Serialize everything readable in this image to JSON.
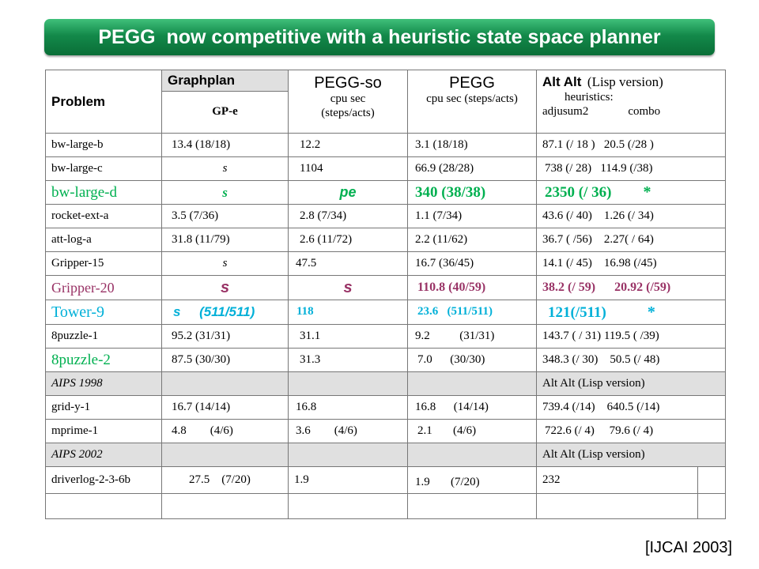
{
  "title": "PEGG  now competitive with a heuristic state space planner",
  "citation": "[IJCAI 2003]",
  "header": {
    "problem": "Problem",
    "graphplan": "Graphplan",
    "gpe": "GP-e",
    "peggso": "PEGG-so",
    "peggso_sub1": "cpu  sec",
    "peggso_sub2": "(steps/acts)",
    "pegg": "PEGG",
    "pegg_sub": "cpu sec  (steps/acts)",
    "altalt": "Alt Alt",
    "altalt_lisp": "(Lisp version)",
    "heuristics": "heuristics:",
    "adjusum2": "adjusum2",
    "combo": "combo"
  },
  "rows": [
    {
      "problem": "bw-large-b",
      "gp": "13.4   (18/18)",
      "so": "12.2",
      "pegg": "3.1     (18/18)",
      "alt1": "87.1 (/ 18 )",
      "alt2": "20.5 (/28 )"
    },
    {
      "problem": "bw-large-c",
      "gp": "s",
      "so": "1104",
      "pegg": "66.9  (28/28)",
      "alt1": "738 (/ 28)",
      "alt2": "114.9 (/38)"
    },
    {
      "problem": "bw-large-d",
      "gp": "s",
      "so": "pe",
      "pegg": "340   (38/38)",
      "alt1": "2350 (/ 36)",
      "alt2": "*"
    },
    {
      "problem": "rocket-ext-a",
      "gp": "3.5   (7/36)",
      "so": "2.8    (7/34)",
      "pegg": "1.1     (7/34)",
      "alt1": "43.6 (/ 40)",
      "alt2": "1.26 (/ 34)"
    },
    {
      "problem": "att-log-a",
      "gp": "31.8   (11/79)",
      "so": "2.6    (11/72)",
      "pegg": "2.2     (11/62)",
      "alt1": "36.7 ( /56)",
      "alt2": "2.27( / 64)"
    },
    {
      "problem": "Gripper-15",
      "gp": "s",
      "so": "47.5",
      "pegg": "16.7   (36/45)",
      "alt1": "14.1 (/ 45)",
      "alt2": "16.98 (/45)"
    },
    {
      "problem": "Gripper-20",
      "gp": "s",
      "so": "s",
      "pegg": "110.8    (40/59)",
      "alt1": "38.2 (/ 59)",
      "alt2": "20.92 (/59)"
    },
    {
      "problem": "Tower-9",
      "gp": "s     (511/511)",
      "so": "118",
      "pegg": "23.6   (511/511)",
      "alt1": "121(/511)",
      "alt2": "*"
    },
    {
      "problem": "8puzzle-1",
      "gp": "95.2   (31/31)",
      "so": "31.1",
      "pegg": "9.2          (31/31)",
      "alt1": "143.7 ( / 31)",
      "alt2": "119.5 ( /39)"
    },
    {
      "problem": "8puzzle-2",
      "gp": "87.5   (30/30)",
      "so": "31.3",
      "pegg": "7.0      (30/30)",
      "alt1": "348.3  (/ 30)",
      "alt2": "50.5 (/ 48)"
    }
  ],
  "aips1998": {
    "label": "AIPS 1998",
    "alt": "Alt Alt  (Lisp version)"
  },
  "rows98": [
    {
      "problem": "grid-y-1",
      "gp": "16.7  (14/14)",
      "so": "16.8",
      "pegg": "16.8      (14/14)",
      "alt1": "739.4 (/14)",
      "alt2": "640.5 (/14)"
    },
    {
      "problem": "mprime-1",
      "gp": "4.8        (4/6)",
      "so": "3.6        (4/6)",
      "pegg": "2.1       (4/6)",
      "alt1": "722.6 (/ 4)",
      "alt2": "79.6 (/ 4)"
    }
  ],
  "aips2002": {
    "label": "AIPS 2002",
    "alt": "Alt Alt  (Lisp version)"
  },
  "rows02": [
    {
      "problem": "driverlog-2-3-6b",
      "gp": "27.5    (7/20)",
      "so": "1.9",
      "pegg": "1.9       (7/20)",
      "alt": "232"
    }
  ]
}
